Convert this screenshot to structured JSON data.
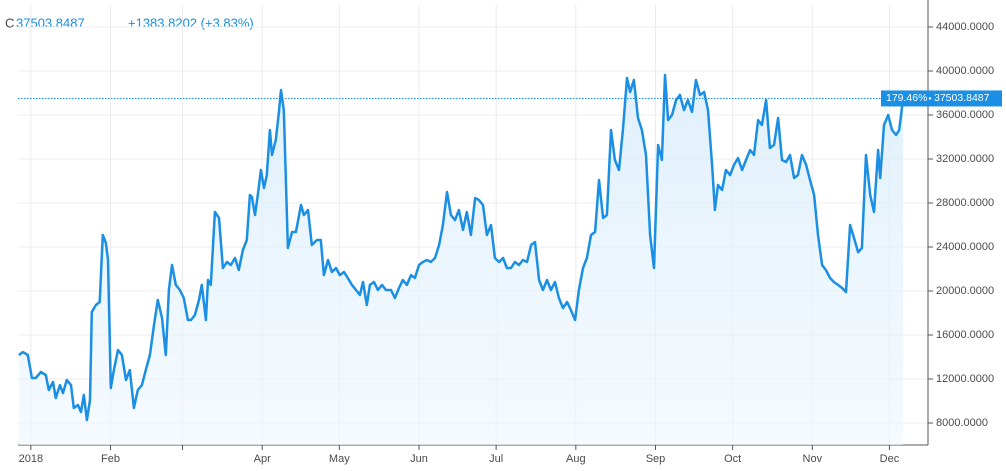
{
  "header": {
    "symbol": "C",
    "price": "37503.8487",
    "change": "+1383.8202 (+3.83%)"
  },
  "price_line": {
    "percent": "179.46%"
  },
  "chart_data": {
    "type": "line",
    "x": [
      -4.7,
      -3.1,
      -1.2,
      0.4,
      1.9,
      3.9,
      5.8,
      7.0,
      8.6,
      9.7,
      11.3,
      12.5,
      14.0,
      15.6,
      16.7,
      18.3,
      19.5,
      20.6,
      21.8,
      23.0,
      23.7,
      25.3,
      26.8,
      28.0,
      29.2,
      30.0,
      31.1,
      32.3,
      33.9,
      35.4,
      37.0,
      38.5,
      40.1,
      41.6,
      43.2,
      44.7,
      46.3,
      47.9,
      49.4,
      51.0,
      52.5,
      53.7,
      54.9,
      56.4,
      58.0,
      59.5,
      61.1,
      62.3,
      63.8,
      65.4,
      66.5,
      68.1,
      68.9,
      70.0,
      71.6,
      73.2,
      74.7,
      76.3,
      77.8,
      79.4,
      80.9,
      82.5,
      84.0,
      85.2,
      86.0,
      87.2,
      88.3,
      89.5,
      90.7,
      91.8,
      93.0,
      93.8,
      95.3,
      96.5,
      97.3,
      98.4,
      100.0,
      101.6,
      103.1,
      105.1,
      106.2,
      107.8,
      109.3,
      111.3,
      112.8,
      114.0,
      115.6,
      117.1,
      118.7,
      120.2,
      121.8,
      123.3,
      124.9,
      126.5,
      128.0,
      129.2,
      130.7,
      131.9,
      133.5,
      135.0,
      136.6,
      138.1,
      140.1,
      141.6,
      143.2,
      144.7,
      146.3,
      147.9,
      149.4,
      151.0,
      152.5,
      154.1,
      155.6,
      157.2,
      158.8,
      160.3,
      161.9,
      163.4,
      165.0,
      166.5,
      168.1,
      169.6,
      171.2,
      172.8,
      174.3,
      175.9,
      177.4,
      179.0,
      180.5,
      182.1,
      183.7,
      185.2,
      186.8,
      188.3,
      189.9,
      191.4,
      193.0,
      194.6,
      196.1,
      197.7,
      199.2,
      200.8,
      202.3,
      203.9,
      205.4,
      207.0,
      208.6,
      210.1,
      211.7,
      213.2,
      214.8,
      216.3,
      217.9,
      219.5,
      221.0,
      222.6,
      224.1,
      225.7,
      227.2,
      228.8,
      230.3,
      231.9,
      233.1,
      234.6,
      236.2,
      237.7,
      239.3,
      240.9,
      242.4,
      244.0,
      245.5,
      246.7,
      247.9,
      249.4,
      251.0,
      252.5,
      254.1,
      255.6,
      257.2,
      258.7,
      260.3,
      261.9,
      263.4,
      265.0,
      266.1,
      267.3,
      268.9,
      270.4,
      272.0,
      273.5,
      275.1,
      276.7,
      278.2,
      279.8,
      281.3,
      282.9,
      284.4,
      286.0,
      287.5,
      289.1,
      290.7,
      292.2,
      293.8,
      295.3,
      296.9,
      298.4,
      300.0,
      301.6,
      303.1,
      304.7,
      306.2,
      307.8,
      309.3,
      310.9,
      312.4,
      314.0,
      315.6,
      317.1,
      318.7,
      320.2,
      321.8,
      323.3,
      324.9,
      326.5,
      328.0,
      329.6,
      330.4,
      331.9,
      333.5,
      335.0,
      336.6,
      337.8,
      339.3
    ],
    "series": [
      {
        "color": "#1a8fe3",
        "values": [
          14180,
          14450,
          14180,
          12090,
          12090,
          12640,
          12360,
          11000,
          11730,
          10270,
          11450,
          10730,
          11910,
          11450,
          9360,
          9640,
          9000,
          10550,
          8270,
          10090,
          18090,
          18730,
          19000,
          25090,
          24360,
          22820,
          11180,
          12820,
          14640,
          14180,
          11910,
          12820,
          9360,
          11000,
          11450,
          12820,
          14180,
          16910,
          19180,
          17550,
          14180,
          20090,
          22360,
          20550,
          20090,
          19360,
          17360,
          17360,
          17820,
          19180,
          20550,
          17360,
          21000,
          20550,
          27180,
          26640,
          22090,
          22640,
          22360,
          23000,
          21910,
          23730,
          24640,
          28730,
          28550,
          26910,
          28730,
          31000,
          29360,
          30540,
          34640,
          32360,
          33730,
          36270,
          38270,
          36450,
          23910,
          25360,
          25360,
          27820,
          26910,
          27360,
          24180,
          24640,
          24640,
          21450,
          22820,
          21730,
          22090,
          21450,
          21730,
          21180,
          20550,
          20090,
          19640,
          20820,
          18730,
          20550,
          20820,
          20090,
          20550,
          20090,
          20090,
          19360,
          20270,
          21000,
          20550,
          21450,
          21180,
          22360,
          22640,
          22820,
          22640,
          23000,
          24180,
          26000,
          29000,
          26910,
          26450,
          27360,
          25550,
          27180,
          25090,
          28450,
          28270,
          27820,
          25090,
          26000,
          23000,
          22640,
          23000,
          22090,
          22090,
          22640,
          22360,
          22820,
          22640,
          24180,
          24450,
          21000,
          20090,
          21000,
          20090,
          20820,
          19360,
          18450,
          19000,
          18270,
          17360,
          20090,
          22090,
          23000,
          25090,
          25360,
          30090,
          26640,
          26910,
          34640,
          31910,
          31000,
          34640,
          39360,
          38090,
          39180,
          35730,
          34640,
          32360,
          25090,
          22090,
          33270,
          31910,
          39640,
          35540,
          36000,
          37360,
          37820,
          36450,
          37360,
          36270,
          39180,
          37820,
          38090,
          36450,
          31450,
          27360,
          29640,
          29180,
          31000,
          30540,
          31450,
          32090,
          31000,
          31910,
          32820,
          32360,
          35540,
          35090,
          37360,
          33000,
          33270,
          35730,
          31910,
          31730,
          32360,
          30270,
          30540,
          32360,
          31450,
          30090,
          28730,
          25090,
          22360,
          21910,
          21180,
          20820,
          20550,
          20270,
          19910,
          26000,
          24820,
          23540,
          23910,
          32360,
          28730,
          27180,
          32820,
          30270,
          35090,
          36000,
          34640,
          34180,
          34640,
          37503.8487
        ]
      }
    ],
    "xlim": [
      -5,
      349
    ],
    "xticks": [
      {
        "value": 0,
        "label": "2018"
      },
      {
        "value": 31,
        "label": "Feb"
      },
      {
        "value": 59,
        "label": null
      },
      {
        "value": 90,
        "label": "Apr"
      },
      {
        "value": 120,
        "label": "May"
      },
      {
        "value": 151,
        "label": "Jun"
      },
      {
        "value": 181,
        "label": "Jul"
      },
      {
        "value": 212,
        "label": "Aug"
      },
      {
        "value": 243,
        "label": "Sep"
      },
      {
        "value": 273,
        "label": "Oct"
      },
      {
        "value": 304,
        "label": "Nov"
      },
      {
        "value": 334,
        "label": "Dec"
      }
    ],
    "ylim": [
      6000,
      46000
    ],
    "yticks": [
      {
        "value": 8000,
        "label": "8000.0000"
      },
      {
        "value": 12000,
        "label": "12000.0000"
      },
      {
        "value": 16000,
        "label": "16000.0000"
      },
      {
        "value": 20000,
        "label": "20000.0000"
      },
      {
        "value": 24000,
        "label": "24000.0000"
      },
      {
        "value": 28000,
        "label": "28000.0000"
      },
      {
        "value": 32000,
        "label": "32000.0000"
      },
      {
        "value": 36000,
        "label": "36000.0000"
      },
      {
        "value": 40000,
        "label": "40000.0000"
      },
      {
        "value": 44000,
        "label": "44000.0000"
      }
    ],
    "grid": true
  }
}
